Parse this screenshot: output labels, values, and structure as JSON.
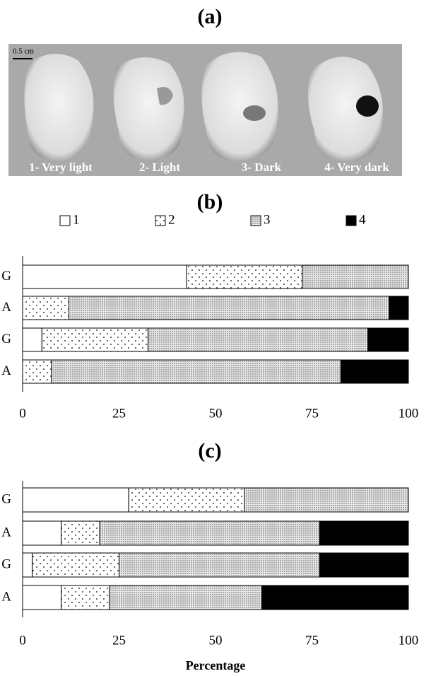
{
  "figure": {
    "panel_a_title": "(a)",
    "scale_bar": "0.5 cm",
    "photo_labels": [
      "1- Very light",
      "2- Light",
      "3- Dark",
      "4- Very dark"
    ]
  },
  "chart_data": [
    {
      "type": "bar",
      "orientation": "horizontal",
      "stacked": true,
      "title": "(b)",
      "categories": [
        "G",
        "A",
        "G",
        "A"
      ],
      "series": [
        {
          "name": "1",
          "color": "#ffffff",
          "values": [
            42.5,
            0,
            5,
            0
          ]
        },
        {
          "name": "2",
          "color": "#ffffff",
          "values": [
            30,
            12,
            27.5,
            7.5
          ]
        },
        {
          "name": "3",
          "color": "#d0d0d0",
          "values": [
            27.5,
            83,
            57,
            75
          ]
        },
        {
          "name": "4",
          "color": "#000000",
          "values": [
            0,
            5,
            10.5,
            17.5
          ]
        }
      ],
      "xlim": [
        0,
        100
      ],
      "xticks": [
        0,
        25,
        50,
        75,
        100
      ],
      "legend": "top"
    },
    {
      "type": "bar",
      "orientation": "horizontal",
      "stacked": true,
      "title": "(c)",
      "categories": [
        "G",
        "A",
        "G",
        "A"
      ],
      "series": [
        {
          "color": "#ffffff",
          "values": [
            27.5,
            10,
            2.5,
            10
          ]
        },
        {
          "color": "#ffffff",
          "values": [
            30,
            10,
            22.5,
            12.5
          ]
        },
        {
          "color": "#d0d0d0",
          "values": [
            42.5,
            57,
            52,
            39.5
          ]
        },
        {
          "color": "#000000",
          "values": [
            0,
            23,
            23,
            38
          ]
        }
      ],
      "xlim": [
        0,
        100
      ],
      "xticks": [
        0,
        25,
        50,
        75,
        100
      ],
      "xlabel": "Percentage"
    }
  ]
}
